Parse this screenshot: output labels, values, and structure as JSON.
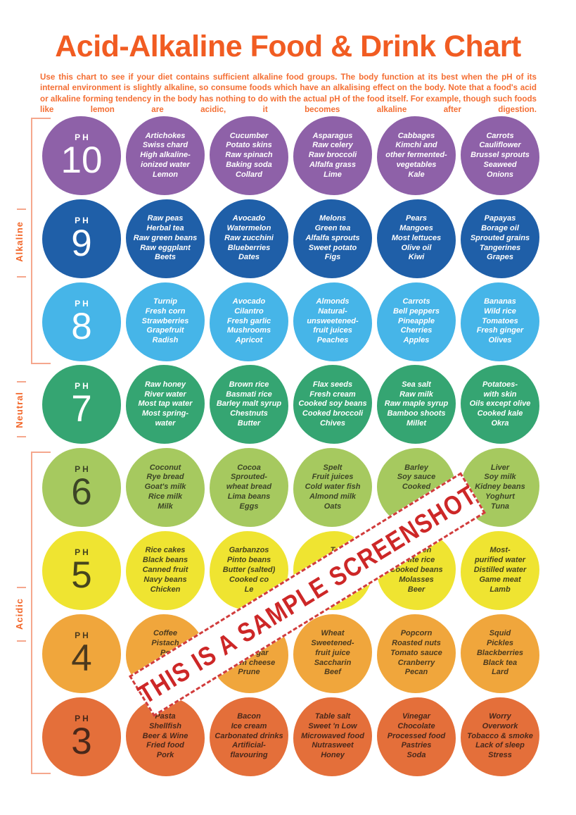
{
  "title": "Acid-Alkaline Food & Drink Chart",
  "intro": "Use this chart to see if your diet contains sufficient alkaline food groups. The body function at its best when the pH of its internal environment is slightly alkaline, so consume foods which have an alkalising effect on the body. Note that a food's acid or alkaline forming tendency in the body has nothing to do with the actual pH of the food itself. For example, though such foods like lemon are acidic, it becomes alkaline after digestion.",
  "ph_label": "PH",
  "side_labels": {
    "alkaline": "Alkaline",
    "neutral": "Neutral",
    "acidic": "Acidic"
  },
  "watermark": {
    "text": "THIS IS A SAMPLE SCREENSHOT",
    "color": "#cd2727"
  },
  "colors": {
    "title_orange": "#f15c22",
    "bracket_salmon": "#f5a78d",
    "banner_red": "#d13c3c"
  },
  "rows": [
    {
      "ph": "10",
      "color": "#8e61a8",
      "text_color": "#ffffff",
      "circles": [
        {
          "lines": [
            "Artichokes",
            "Swiss chard",
            "High alkaline-",
            "ionized water",
            "Lemon"
          ]
        },
        {
          "lines": [
            "Cucumber",
            "Potato skins",
            "Raw spinach",
            "Baking soda",
            "Collard"
          ]
        },
        {
          "lines": [
            "Asparagus",
            "Raw celery",
            "Raw broccoli",
            "Alfalfa grass",
            "Lime"
          ]
        },
        {
          "lines": [
            "Cabbages",
            "Kimchi and",
            "other fermented-",
            "vegetables",
            "Kale"
          ]
        },
        {
          "lines": [
            "Carrots",
            "Cauliflower",
            "Brussel sprouts",
            "Seaweed",
            "Onions"
          ]
        }
      ]
    },
    {
      "ph": "9",
      "color": "#1f5fa8",
      "text_color": "#ffffff",
      "circles": [
        {
          "lines": [
            "Raw peas",
            "Herbal tea",
            "Raw green beans",
            "Raw eggplant",
            "Beets"
          ]
        },
        {
          "lines": [
            "Avocado",
            "Watermelon",
            "Raw zucchini",
            "Blueberries",
            "Dates"
          ]
        },
        {
          "lines": [
            "Melons",
            "Green tea",
            "Alfalfa sprouts",
            "Sweet potato",
            "Figs"
          ]
        },
        {
          "lines": [
            "Pears",
            "Mangoes",
            "Most lettuces",
            "Olive oil",
            "Kiwi"
          ]
        },
        {
          "lines": [
            "Papayas",
            "Borage oil",
            "Sprouted grains",
            "Tangerines",
            "Grapes"
          ]
        }
      ]
    },
    {
      "ph": "8",
      "color": "#46b5e8",
      "text_color": "#ffffff",
      "circles": [
        {
          "lines": [
            "Turnip",
            "Fresh corn",
            "Strawberries",
            "Grapefruit",
            "Radish"
          ]
        },
        {
          "lines": [
            "Avocado",
            "Cilantro",
            "Fresh garlic",
            "Mushrooms",
            "Apricot"
          ]
        },
        {
          "lines": [
            "Almonds",
            "Natural-",
            "unsweetened-",
            "fruit juices",
            "Peaches"
          ]
        },
        {
          "lines": [
            "Carrots",
            "Bell peppers",
            "Pineapple",
            "Cherries",
            "Apples"
          ]
        },
        {
          "lines": [
            "Bananas",
            "Wild rice",
            "Tomatoes",
            "Fresh ginger",
            "Olives"
          ]
        }
      ]
    },
    {
      "ph": "7",
      "color": "#35a572",
      "text_color": "#ffffff",
      "circles": [
        {
          "lines": [
            "Raw honey",
            "River water",
            "Most tap water",
            "Most spring-",
            "water"
          ]
        },
        {
          "lines": [
            "Brown rice",
            "Basmati rice",
            "Barley malt syrup",
            "Chestnuts",
            "Butter"
          ]
        },
        {
          "lines": [
            "Flax seeds",
            "Fresh cream",
            "Cooked soy beans",
            "Cooked broccoli",
            "Chives"
          ]
        },
        {
          "lines": [
            "Sea salt",
            "Raw milk",
            "Raw maple syrup",
            "Bamboo shoots",
            "Millet"
          ]
        },
        {
          "lines": [
            "Potatoes-",
            "with skin",
            "Oils except olive",
            "Cooked kale",
            "Okra"
          ]
        }
      ]
    },
    {
      "ph": "6",
      "color": "#a6c95f",
      "text_color": "#3c4526",
      "circles": [
        {
          "lines": [
            "Coconut",
            "Rye bread",
            "Goat's milk",
            "Rice milk",
            "Milk"
          ]
        },
        {
          "lines": [
            "Cocoa",
            "Sprouted-",
            "wheat bread",
            "Lima beans",
            "Eggs"
          ]
        },
        {
          "lines": [
            "Spelt",
            "Fruit juices",
            "Cold water fish",
            "Almond milk",
            "Oats"
          ]
        },
        {
          "lines": [
            "Barley",
            "Soy sauce",
            "Cooked",
            "",
            ""
          ]
        },
        {
          "lines": [
            "Liver",
            "Soy milk",
            "Kidney beans",
            "Yoghurt",
            "Tuna"
          ]
        }
      ]
    },
    {
      "ph": "5",
      "color": "#efe431",
      "text_color": "#46441e",
      "circles": [
        {
          "lines": [
            "Rice cakes",
            "Black beans",
            "Canned fruit",
            "Navy beans",
            "Chicken"
          ]
        },
        {
          "lines": [
            "Garbanzos",
            "Pinto beans",
            "Butter (salted)",
            "Cooked co",
            "Le"
          ]
        },
        {
          "lines": [
            "T",
            "",
            "",
            "",
            "gar"
          ]
        },
        {
          "lines": [
            "Chicken",
            "White rice",
            "Cooked beans",
            "Molasses",
            "Beer"
          ]
        },
        {
          "lines": [
            "Most-",
            "purified water",
            "Distilled water",
            "Game meat",
            "Lamb"
          ]
        }
      ]
    },
    {
      "ph": "4",
      "color": "#f0a63c",
      "text_color": "#4c3a1e",
      "circles": [
        {
          "lines": [
            "Coffee",
            "Pistach",
            "Po",
            "",
            ""
          ]
        },
        {
          "lines": [
            "",
            "ead",
            "ne vinegar",
            "Cream cheese",
            "Prune"
          ]
        },
        {
          "lines": [
            "Wheat",
            "Sweetened-",
            "fruit juice",
            "Saccharin",
            "Beef"
          ]
        },
        {
          "lines": [
            "Popcorn",
            "Roasted nuts",
            "Tomato sauce",
            "Cranberry",
            "Pecan"
          ]
        },
        {
          "lines": [
            "Squid",
            "Pickles",
            "Blackberries",
            "Black tea",
            "Lard"
          ]
        }
      ]
    },
    {
      "ph": "3",
      "color": "#e46f3a",
      "text_color": "#49281a",
      "circles": [
        {
          "lines": [
            "Pasta",
            "Shellfish",
            "Beer & Wine",
            "Fried food",
            "Pork"
          ]
        },
        {
          "lines": [
            "Bacon",
            "Ice cream",
            "Carbonated drinks",
            "Artificial-",
            "flavouring"
          ]
        },
        {
          "lines": [
            "Table salt",
            "Sweet 'n Low",
            "Microwaved food",
            "Nutrasweet",
            "Honey"
          ]
        },
        {
          "lines": [
            "Vinegar",
            "Chocolate",
            "Processed food",
            "Pastries",
            "Soda"
          ]
        },
        {
          "lines": [
            "Worry",
            "Overwork",
            "Tobacco & smoke",
            "Lack of sleep",
            "Stress"
          ]
        }
      ]
    }
  ]
}
